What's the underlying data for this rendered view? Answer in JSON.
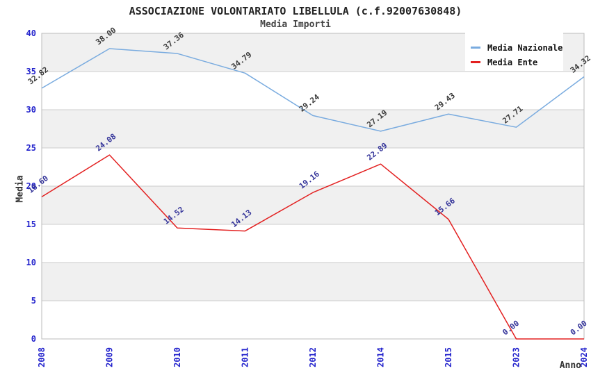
{
  "header": {
    "title": "ASSOCIAZIONE VOLONTARIATO LIBELLULA (c.f.92007630848)",
    "subtitle": "Media Importi"
  },
  "colors": {
    "background": "#ffffff",
    "band_gray": "#f0f0f0",
    "gridline": "#cccccc",
    "plot_border": "#bbbbbb",
    "axis_tick_label": "#2222cc",
    "axis_title": "#333333",
    "legend_text": "#111111"
  },
  "chart_data": {
    "type": "line",
    "title": "ASSOCIAZIONE VOLONTARIATO LIBELLULA (c.f.92007630848)",
    "subtitle": "Media Importi",
    "xlabel": "Anno",
    "ylabel": "Media",
    "categories": [
      "2008",
      "2009",
      "2010",
      "2011",
      "2012",
      "2014",
      "2015",
      "2023",
      "2024"
    ],
    "series": [
      {
        "name": "Media Nazionale",
        "color": "#79abdf",
        "label_color": "#3a3a3a",
        "values": [
          32.82,
          38.0,
          37.36,
          34.79,
          29.24,
          27.19,
          29.43,
          27.71,
          34.32
        ]
      },
      {
        "name": "Media Ente",
        "color": "#e32020",
        "label_color": "#333399",
        "values": [
          18.6,
          24.08,
          14.52,
          14.13,
          19.16,
          22.89,
          15.66,
          0.0,
          0.0
        ]
      }
    ],
    "ylim": [
      0,
      40
    ],
    "ytick_step": 5,
    "yticks": [
      0,
      5,
      10,
      15,
      20,
      25,
      30,
      35,
      40
    ],
    "grid": "horizontal-bands-alternating",
    "legend_position": "top-right",
    "value_label_decimals": 2
  }
}
